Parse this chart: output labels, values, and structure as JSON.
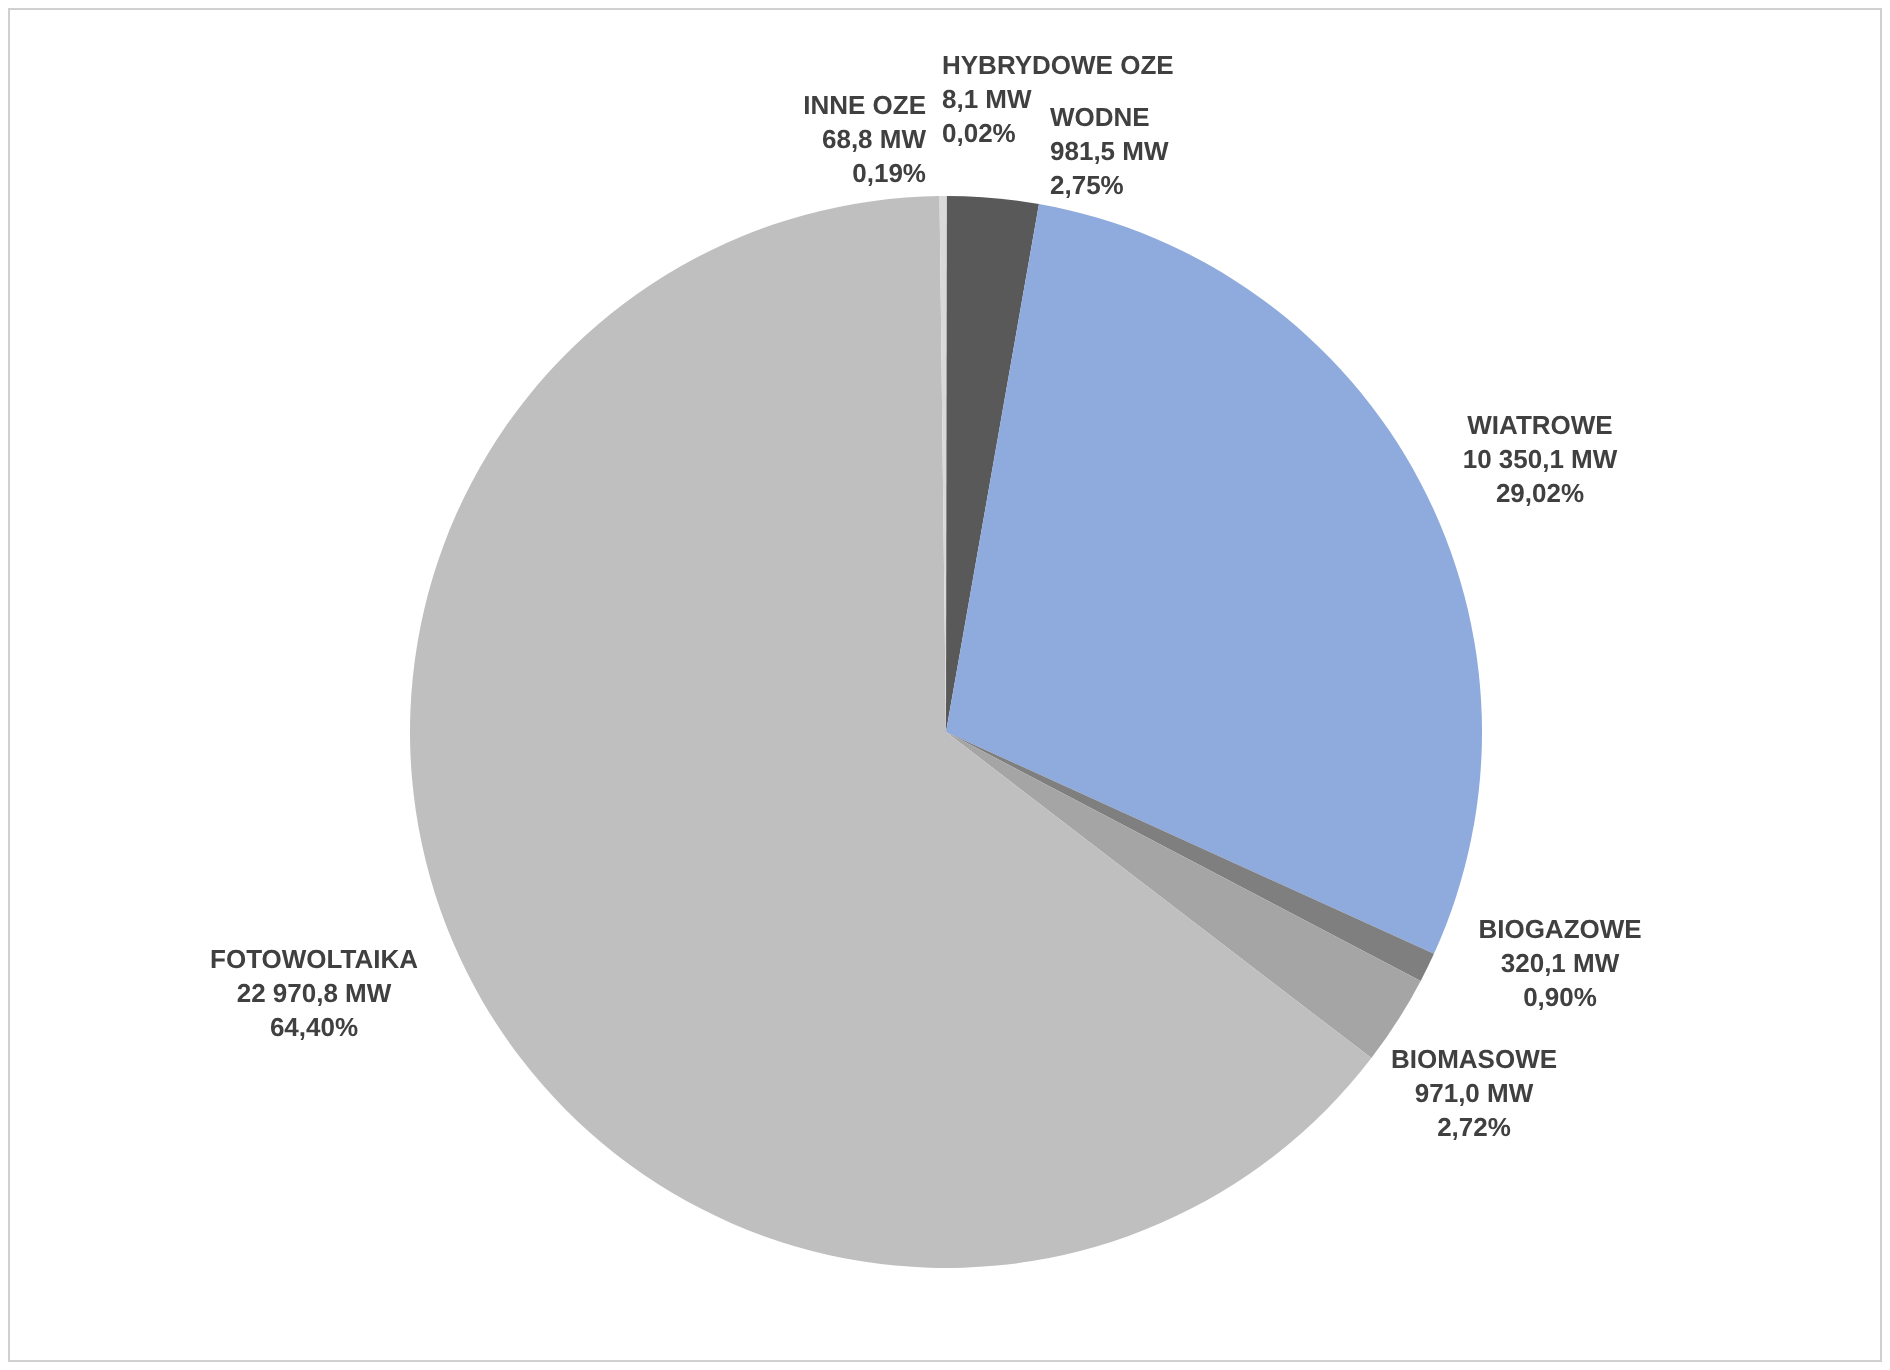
{
  "chart_data": {
    "type": "pie",
    "categories": [
      "HYBRYDOWE  OZE",
      "WODNE",
      "WIATROWE",
      "BIOGAZOWE",
      "BIOMASOWE",
      "FOTOWOLTAIKA",
      "INNE OZE"
    ],
    "values": [
      8.1,
      981.5,
      10350.1,
      320.1,
      971.0,
      22970.8,
      68.8
    ],
    "value_labels": [
      "8,1 MW\n0,02%",
      "981,5 MW\n2,75%",
      "10 350,1 MW\n29,02%",
      "320,1 MW\n0,90%",
      "971,0 MW\n2,72%",
      "22 970,8 MW\n64,40%",
      "68,8 MW\n0,19%"
    ],
    "colors": [
      "#f2f2f2",
      "#595959",
      "#8faadc",
      "#7f7f7f",
      "#a5a5a5",
      "#bfbfbf",
      "#d9d9d9"
    ]
  }
}
